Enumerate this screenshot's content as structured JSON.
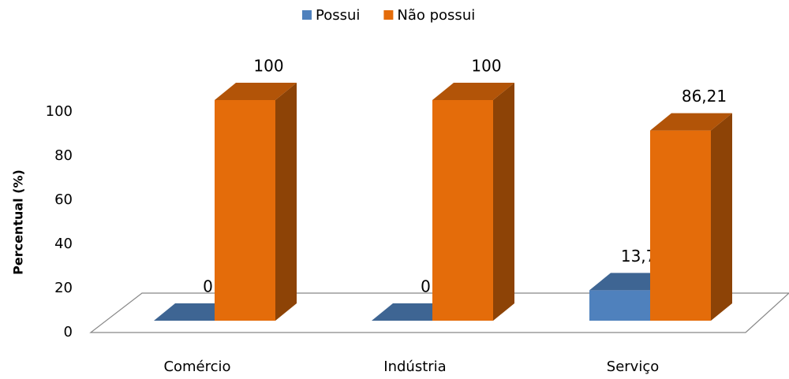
{
  "chart_data": {
    "type": "bar3d",
    "categories": [
      "Comércio",
      "Indústria",
      "Serviço"
    ],
    "series": [
      {
        "name": "Possui",
        "color": "#4f81bd",
        "values": [
          0,
          0,
          13.79
        ],
        "value_labels": [
          "0",
          "0",
          "13,79"
        ]
      },
      {
        "name": "Não possui",
        "color": "#e46c0a",
        "values": [
          100,
          100,
          86.21
        ],
        "value_labels": [
          "100",
          "100",
          "86,21"
        ]
      }
    ],
    "ylabel": "Percentual (%)",
    "ylim": [
      0,
      100
    ],
    "yticks": [
      0,
      20,
      40,
      60,
      80,
      100
    ],
    "legend": "top"
  }
}
